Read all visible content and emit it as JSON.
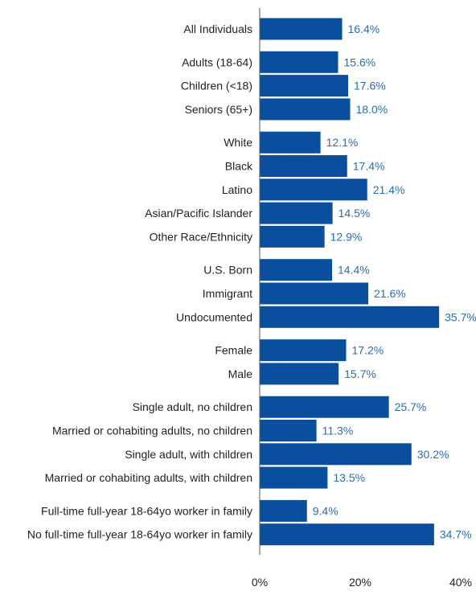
{
  "chart_data": {
    "type": "bar",
    "orientation": "horizontal",
    "categories": [
      "All Individuals",
      "Adults (18-64)",
      "Children (<18)",
      "Seniors (65+)",
      "White",
      "Black",
      "Latino",
      "Asian/Pacific Islander",
      "Other Race/Ethnicity",
      "U.S. Born",
      "Immigrant",
      "Undocumented",
      "Female",
      "Male",
      "Single adult, no children",
      "Married or cohabiting adults, no children",
      "Single adult, with children",
      "Married or cohabiting adults, with children",
      "Full-time full-year 18-64yo worker in family",
      "No full-time full-year 18-64yo worker in family"
    ],
    "groups": [
      1,
      3,
      5,
      3,
      2,
      4,
      2
    ],
    "values": [
      16.4,
      15.6,
      17.6,
      18.0,
      12.1,
      17.4,
      21.4,
      14.5,
      12.9,
      14.4,
      21.6,
      35.7,
      17.2,
      15.7,
      25.7,
      11.3,
      30.2,
      13.5,
      9.4,
      34.7
    ],
    "value_labels": [
      "16.4%",
      "15.6%",
      "17.6%",
      "18.0%",
      "12.1%",
      "17.4%",
      "21.4%",
      "14.5%",
      "12.9%",
      "14.4%",
      "21.6%",
      "35.7%",
      "17.2%",
      "15.7%",
      "25.7%",
      "11.3%",
      "30.2%",
      "13.5%",
      "9.4%",
      "34.7%"
    ],
    "xlim": [
      0,
      40
    ],
    "x_ticks": [
      0,
      20,
      40
    ],
    "x_tick_labels": [
      "0%",
      "20%",
      "40%"
    ],
    "title": "",
    "xlabel": "",
    "ylabel": "",
    "grid": false,
    "colors": {
      "bar": "#0a4f9e",
      "value_label": "#2a6cb5",
      "axis": "#555555",
      "text": "#222222"
    }
  }
}
